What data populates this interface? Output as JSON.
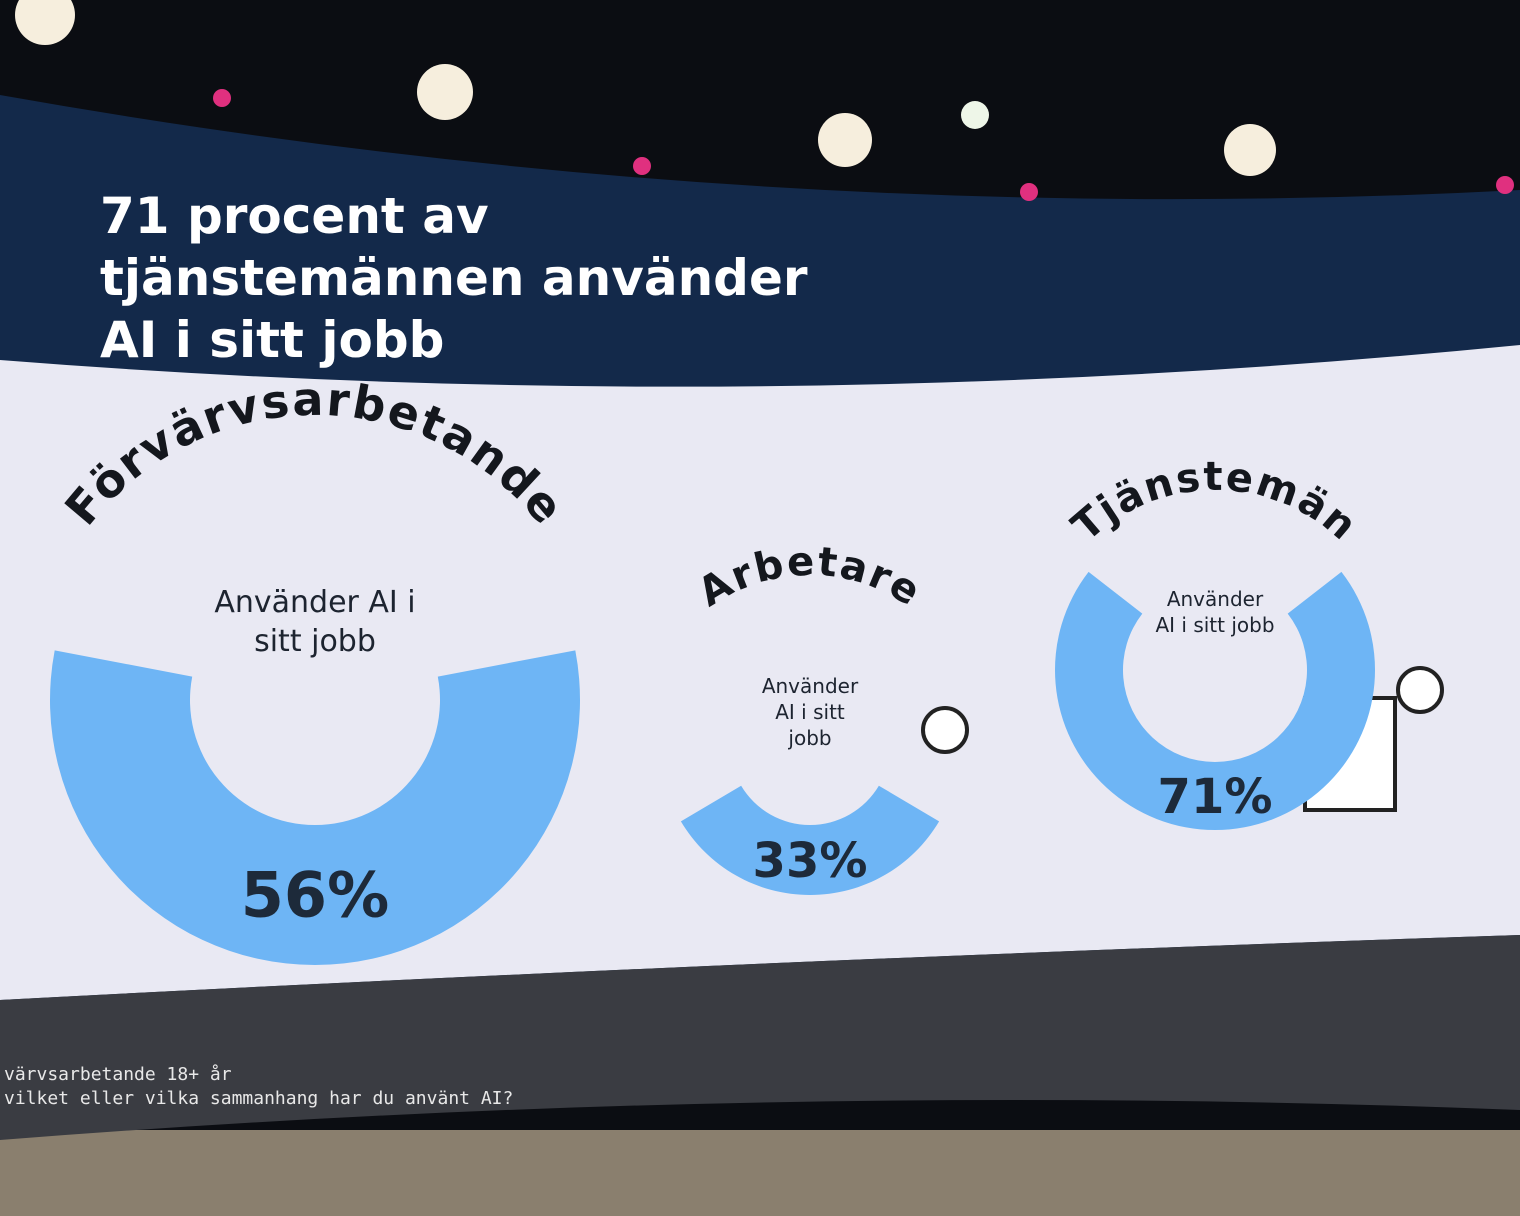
{
  "slide": {
    "title": "71 procent av tjänstemännen använder AI i sitt jobb",
    "footnote": [
      "värvsarbetande 18+ år",
      "vilket eller vilka sammanhang har du använt AI?"
    ]
  },
  "chart_data": [
    {
      "type": "donut",
      "title": "Förvärvsarbetande",
      "subtitle": "Använder AI i sitt jobb",
      "values": [
        56
      ],
      "value_labels": [
        "56%"
      ],
      "color": "#6eb5f5"
    },
    {
      "type": "donut",
      "title": "Arbetare",
      "subtitle": "Använder AI i sitt jobb",
      "values": [
        33
      ],
      "value_labels": [
        "33%"
      ],
      "color": "#6eb5f5"
    },
    {
      "type": "donut",
      "title": "Tjänstemän",
      "subtitle": "Använder AI i sitt jobb",
      "values": [
        71
      ],
      "value_labels": [
        "71%"
      ],
      "color": "#6eb5f5"
    }
  ]
}
